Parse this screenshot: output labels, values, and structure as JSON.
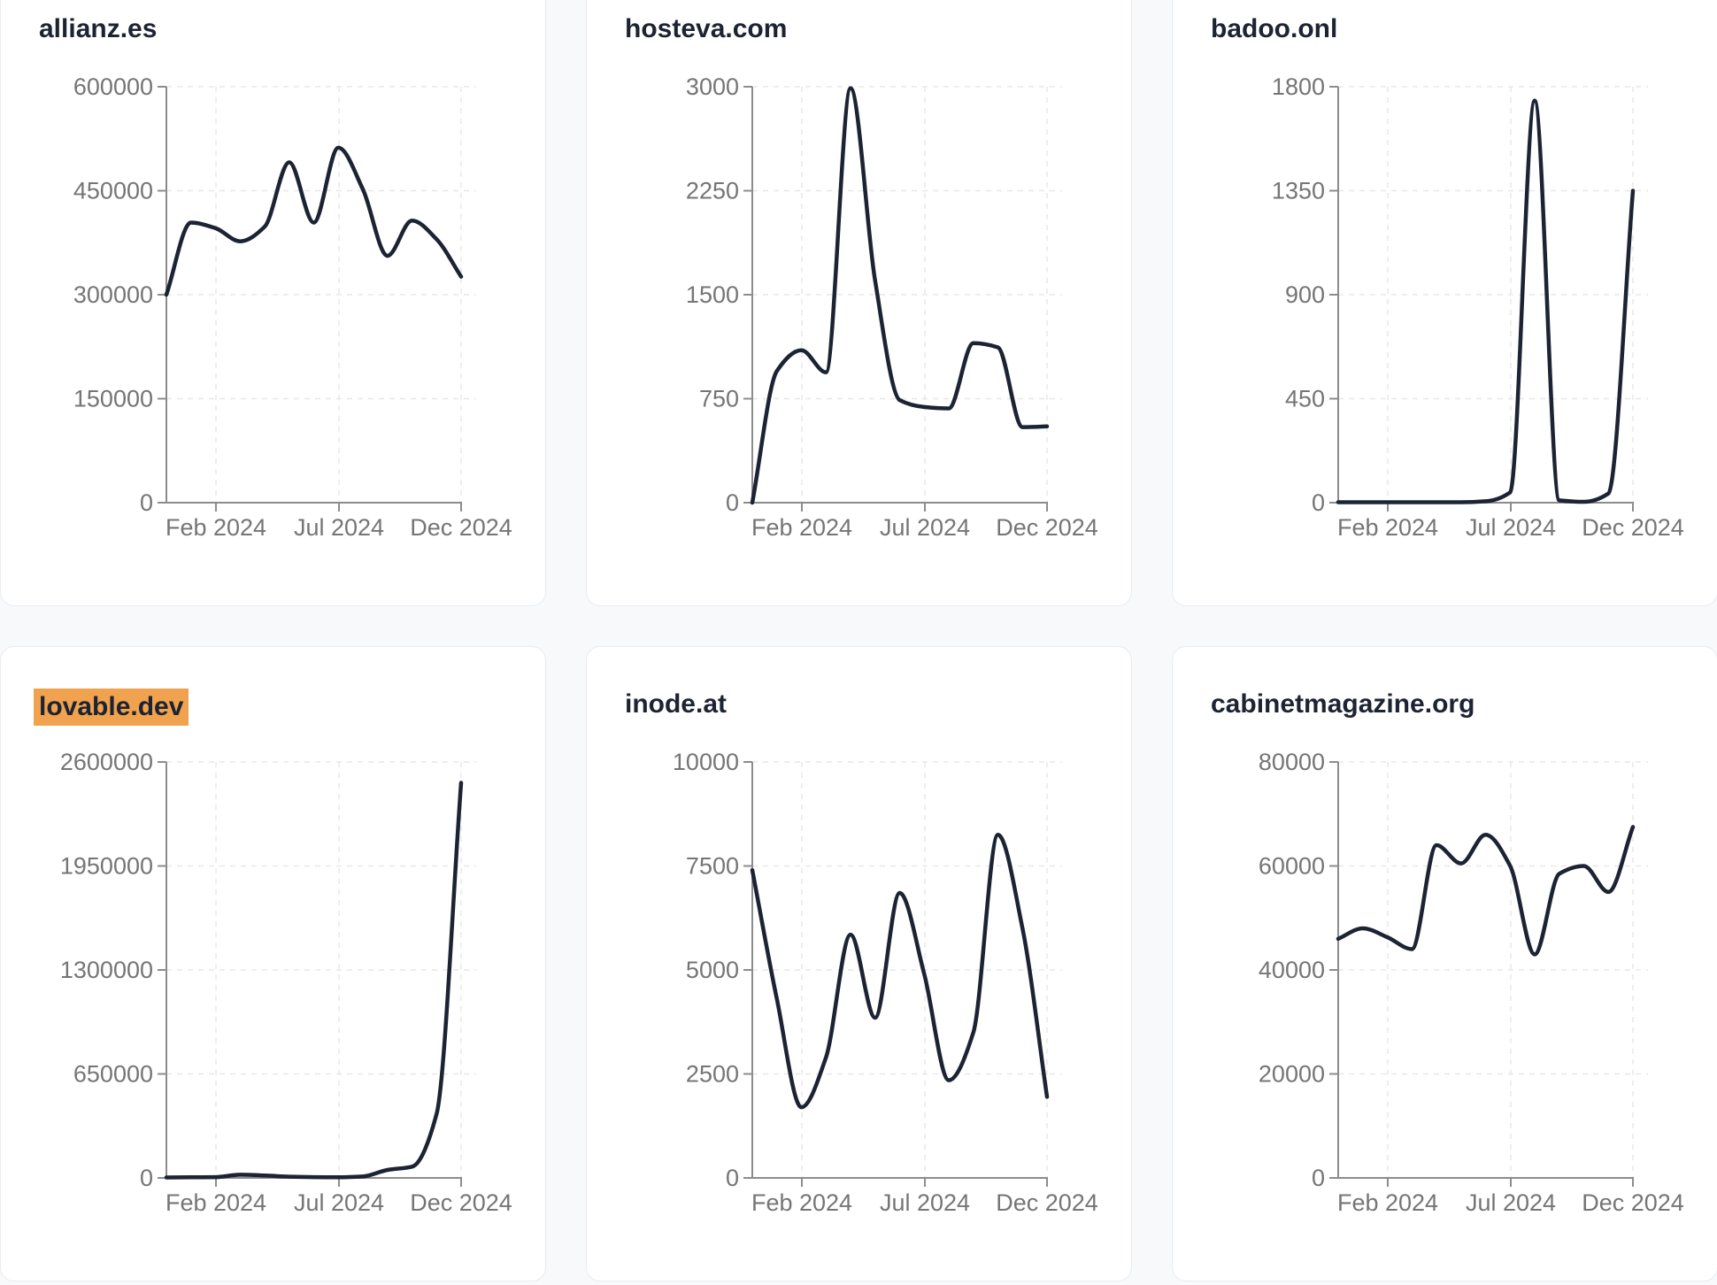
{
  "style": {
    "page_background": "#f8f9fb",
    "card_background": "#ffffff",
    "card_border": "#e9ebf2",
    "title_color": "#1c2333",
    "line_color": "#1c2333",
    "tick_text_color": "#757575",
    "axis_color": "#8c8c8c",
    "grid_color": "#e8e8ec",
    "highlight_color": "#f0a24e"
  },
  "chart_data": [
    {
      "type": "line",
      "title": "allianz.es",
      "title_highlighted": false,
      "x": [
        "Dec 2023",
        "Jan 2024",
        "Feb 2024",
        "Mar 2024",
        "Apr 2024",
        "May 2024",
        "Jun 2024",
        "Jul 2024",
        "Aug 2024",
        "Sep 2024",
        "Oct 2024",
        "Nov 2024",
        "Dec 2024"
      ],
      "values": [
        300000,
        404000,
        396000,
        377000,
        398000,
        491000,
        404000,
        512000,
        452000,
        356000,
        407000,
        380000,
        326000
      ],
      "ylim": [
        0,
        600000
      ],
      "y_ticks": [
        0,
        150000,
        300000,
        450000,
        600000
      ],
      "x_tick_labels": [
        "Feb 2024",
        "Jul 2024",
        "Dec 2024"
      ],
      "x_tick_indices": [
        2,
        7,
        12
      ],
      "grid": "dashed",
      "legend": "none"
    },
    {
      "type": "line",
      "title": "hosteva.com",
      "title_highlighted": false,
      "x": [
        "Dec 2023",
        "Jan 2024",
        "Feb 2024",
        "Mar 2024",
        "Apr 2024",
        "May 2024",
        "Jun 2024",
        "Jul 2024",
        "Aug 2024",
        "Sep 2024",
        "Oct 2024",
        "Nov 2024",
        "Dec 2024"
      ],
      "values": [
        0,
        950,
        1100,
        940,
        2990,
        1600,
        740,
        690,
        680,
        1150,
        1120,
        545,
        550
      ],
      "ylim": [
        0,
        3000
      ],
      "y_ticks": [
        0,
        750,
        1500,
        2250,
        3000
      ],
      "x_tick_labels": [
        "Feb 2024",
        "Jul 2024",
        "Dec 2024"
      ],
      "x_tick_indices": [
        2,
        7,
        12
      ],
      "grid": "dashed",
      "legend": "none"
    },
    {
      "type": "line",
      "title": "badoo.onl",
      "title_highlighted": false,
      "x": [
        "Dec 2023",
        "Jan 2024",
        "Feb 2024",
        "Mar 2024",
        "Apr 2024",
        "May 2024",
        "Jun 2024",
        "Jul 2024",
        "Aug 2024",
        "Sep 2024",
        "Oct 2024",
        "Nov 2024",
        "Dec 2024"
      ],
      "values": [
        2,
        2,
        2,
        2,
        2,
        2,
        6,
        45,
        1740,
        10,
        4,
        40,
        1350
      ],
      "ylim": [
        0,
        1800
      ],
      "y_ticks": [
        0,
        450,
        900,
        1350,
        1800
      ],
      "x_tick_labels": [
        "Feb 2024",
        "Jul 2024",
        "Dec 2024"
      ],
      "x_tick_indices": [
        2,
        7,
        12
      ],
      "grid": "dashed",
      "legend": "none"
    },
    {
      "type": "line",
      "title": "lovable.dev",
      "title_highlighted": true,
      "x": [
        "Dec 2023",
        "Jan 2024",
        "Feb 2024",
        "Mar 2024",
        "Apr 2024",
        "May 2024",
        "Jun 2024",
        "Jul 2024",
        "Aug 2024",
        "Sep 2024",
        "Oct 2024",
        "Nov 2024",
        "Dec 2024"
      ],
      "values": [
        3000,
        4000,
        5000,
        20000,
        15000,
        8000,
        5000,
        4000,
        9000,
        50000,
        70000,
        400000,
        2470000
      ],
      "ylim": [
        0,
        2600000
      ],
      "y_ticks": [
        0,
        650000,
        1300000,
        1950000,
        2600000
      ],
      "x_tick_labels": [
        "Feb 2024",
        "Jul 2024",
        "Dec 2024"
      ],
      "x_tick_indices": [
        2,
        7,
        12
      ],
      "grid": "dashed",
      "legend": "none"
    },
    {
      "type": "line",
      "title": "inode.at",
      "title_highlighted": false,
      "x": [
        "Dec 2023",
        "Jan 2024",
        "Feb 2024",
        "Mar 2024",
        "Apr 2024",
        "May 2024",
        "Jun 2024",
        "Jul 2024",
        "Aug 2024",
        "Sep 2024",
        "Oct 2024",
        "Nov 2024",
        "Dec 2024"
      ],
      "values": [
        7400,
        4300,
        1700,
        2900,
        5850,
        3850,
        6850,
        4900,
        2350,
        3500,
        8250,
        6000,
        1950
      ],
      "ylim": [
        0,
        10000
      ],
      "y_ticks": [
        0,
        2500,
        5000,
        7500,
        10000
      ],
      "x_tick_labels": [
        "Feb 2024",
        "Jul 2024",
        "Dec 2024"
      ],
      "x_tick_indices": [
        2,
        7,
        12
      ],
      "grid": "dashed",
      "legend": "none"
    },
    {
      "type": "line",
      "title": "cabinetmagazine.org",
      "title_highlighted": false,
      "x": [
        "Dec 2023",
        "Jan 2024",
        "Feb 2024",
        "Mar 2024",
        "Apr 2024",
        "May 2024",
        "Jun 2024",
        "Jul 2024",
        "Aug 2024",
        "Sep 2024",
        "Oct 2024",
        "Nov 2024",
        "Dec 2024"
      ],
      "values": [
        46000,
        48000,
        46300,
        44000,
        64000,
        60500,
        66000,
        60000,
        43000,
        58500,
        60000,
        55000,
        67500
      ],
      "ylim": [
        0,
        80000
      ],
      "y_ticks": [
        0,
        20000,
        40000,
        60000,
        80000
      ],
      "x_tick_labels": [
        "Feb 2024",
        "Jul 2024",
        "Dec 2024"
      ],
      "x_tick_indices": [
        2,
        7,
        12
      ],
      "grid": "dashed",
      "legend": "none"
    }
  ]
}
